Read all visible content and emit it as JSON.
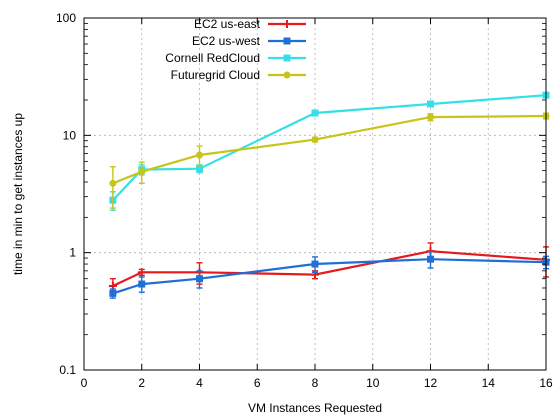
{
  "chart_data": {
    "type": "line",
    "title": "",
    "xlabel": "VM Instances Requested",
    "ylabel": "time in min to get instances up",
    "xlim": [
      0,
      16
    ],
    "ylim": [
      0.1,
      100
    ],
    "yscale": "log",
    "xticks": [
      0,
      2,
      4,
      6,
      8,
      10,
      12,
      14,
      16
    ],
    "yticks": [
      0.1,
      1,
      10,
      100
    ],
    "ytick_labels": [
      "0.1",
      "1",
      "10",
      "100"
    ],
    "grid": true,
    "legend_position": "top-left",
    "series": [
      {
        "name": "EC2 us-east",
        "color": "#e41a1c",
        "marker": "plus",
        "x": [
          1,
          2,
          4,
          8,
          12,
          16
        ],
        "y": [
          0.52,
          0.68,
          0.68,
          0.65,
          1.03,
          0.87
        ],
        "err": [
          0.08,
          0.04,
          0.14,
          0.05,
          0.18,
          0.25
        ]
      },
      {
        "name": "EC2 us-west",
        "color": "#1f6fd6",
        "marker": "square",
        "x": [
          1,
          2,
          4,
          8,
          12,
          16
        ],
        "y": [
          0.45,
          0.54,
          0.6,
          0.8,
          0.88,
          0.83
        ],
        "err": [
          0.04,
          0.08,
          0.1,
          0.12,
          0.14,
          0.1
        ]
      },
      {
        "name": "Cornell RedCloud",
        "color": "#33e0e8",
        "marker": "filled-square",
        "x": [
          1,
          2,
          4,
          8,
          12,
          16
        ],
        "y": [
          2.8,
          5.1,
          5.2,
          15.5,
          18.5,
          22.0
        ],
        "err": [
          0.5,
          0.5,
          0.4,
          0.6,
          0.8,
          1.0
        ]
      },
      {
        "name": "Futuregrid Cloud",
        "color": "#c8c419",
        "marker": "filled-circle",
        "x": [
          1,
          2,
          4,
          8,
          12,
          16
        ],
        "y": [
          3.9,
          4.9,
          6.8,
          9.2,
          14.3,
          14.6
        ],
        "err": [
          1.5,
          1.0,
          1.3,
          0.4,
          1.0,
          0.8
        ]
      }
    ]
  }
}
